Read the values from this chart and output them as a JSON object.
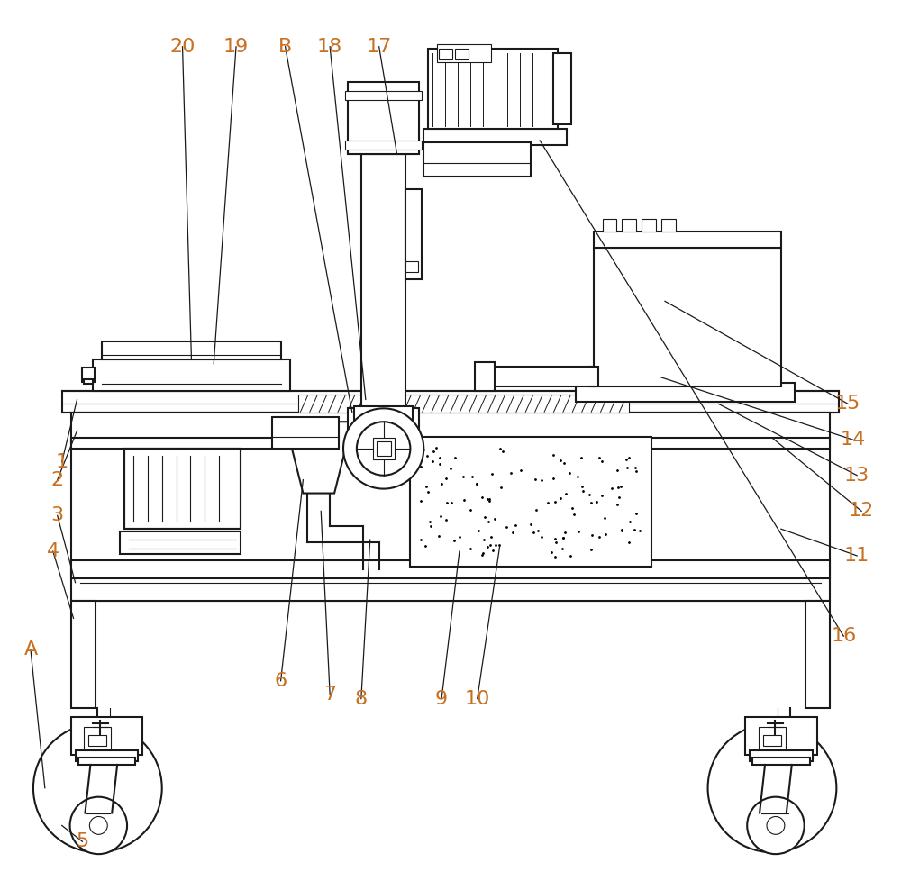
{
  "bg_color": "#ffffff",
  "line_color": "#1a1a1a",
  "label_color": "#c87020",
  "ann_color": "#1a1a1a",
  "figsize": [
    10.0,
    9.88
  ],
  "dpi": 100
}
